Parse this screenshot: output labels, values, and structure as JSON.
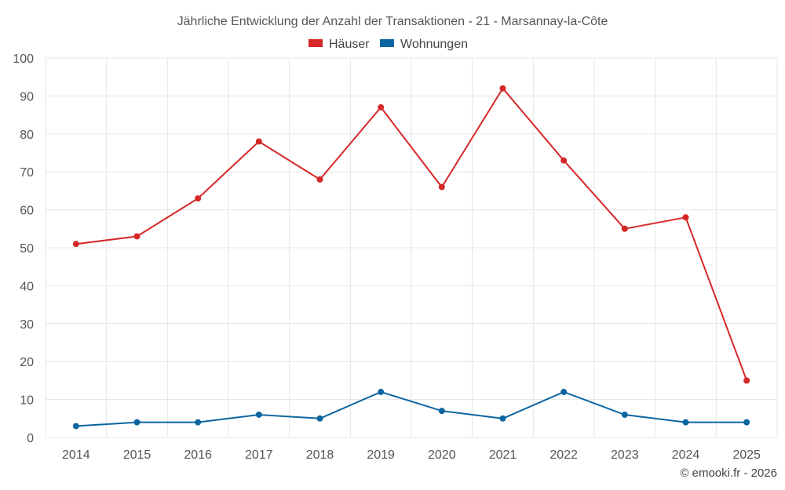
{
  "chart_data": {
    "type": "line",
    "title": "Jährliche Entwicklung der Anzahl der Transaktionen - 21 - Marsannay-la-Côte",
    "categories": [
      "2014",
      "2015",
      "2016",
      "2017",
      "2018",
      "2019",
      "2020",
      "2021",
      "2022",
      "2023",
      "2024",
      "2025"
    ],
    "series": [
      {
        "name": "Häuser",
        "color": "#d62728",
        "values": [
          51,
          53,
          63,
          78,
          68,
          87,
          66,
          92,
          73,
          55,
          58,
          15
        ]
      },
      {
        "name": "Wohnungen",
        "color": "#0b66a0",
        "values": [
          3,
          4,
          4,
          6,
          5,
          12,
          7,
          5,
          12,
          6,
          4,
          4
        ]
      }
    ],
    "ylim": [
      0,
      100
    ],
    "yticks": [
      "0",
      "10",
      "20",
      "30",
      "40",
      "50",
      "60",
      "70",
      "80",
      "90",
      "100"
    ],
    "xlabel": "",
    "ylabel": "",
    "grid": true,
    "legend": "top-center"
  },
  "footer": {
    "copyright": "© emooki.fr - 2026"
  }
}
